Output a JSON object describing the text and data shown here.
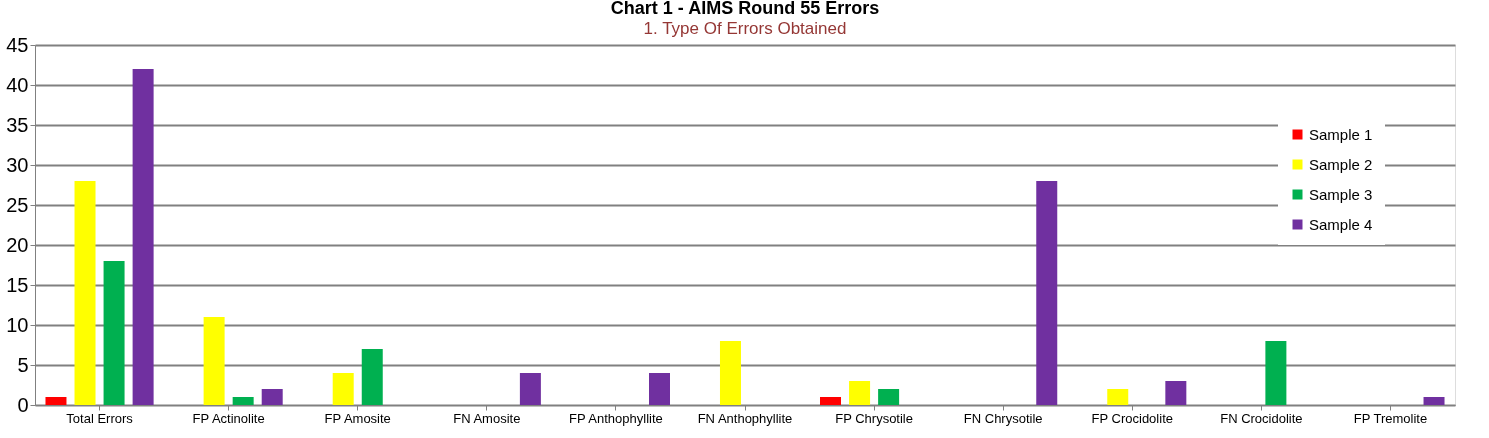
{
  "chart_data": {
    "type": "bar",
    "title": "Chart 1 - AIMS Round 55 Errors",
    "annotations": [
      "1. Type Of Errors Obtained"
    ],
    "categories": [
      "Total Errors",
      "FP Actinolite",
      "FP Amosite",
      "FN Amosite",
      "FP Anthophyllite",
      "FN Anthophyllite",
      "FP Chrysotile",
      "FN Chrysotile",
      "FP Crocidolite",
      "FN Crocidolite",
      "FP Tremolite"
    ],
    "series": [
      {
        "name": "Sample 1",
        "color": "#ff0000",
        "values": [
          1,
          0,
          0,
          0,
          0,
          0,
          1,
          0,
          0,
          0,
          0
        ]
      },
      {
        "name": "Sample 2",
        "color": "#ffff00",
        "values": [
          28,
          11,
          4,
          0,
          0,
          8,
          3,
          0,
          2,
          0,
          0
        ]
      },
      {
        "name": "Sample 3",
        "color": "#00b050",
        "values": [
          18,
          1,
          7,
          0,
          0,
          0,
          2,
          0,
          0,
          8,
          0
        ]
      },
      {
        "name": "Sample 4",
        "color": "#7030a0",
        "values": [
          42,
          2,
          0,
          4,
          4,
          0,
          0,
          28,
          3,
          0,
          1
        ]
      }
    ],
    "ylim": [
      0,
      45
    ],
    "yticks": [
      0,
      5,
      10,
      15,
      20,
      25,
      30,
      35,
      40,
      45
    ],
    "grid": "y",
    "legend": "top right"
  }
}
